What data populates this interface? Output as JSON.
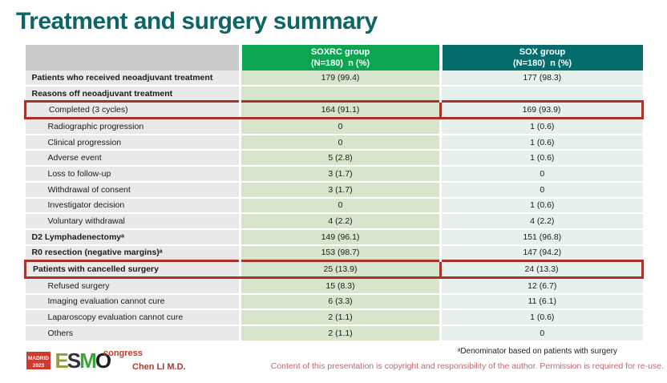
{
  "slide": {
    "title": "Treatment and surgery summary",
    "presenter": "Chen LI M.D.",
    "footnote": "ᵃDenominator based on patients with surgery",
    "copyright": "Content of this presentation is copyright and responsibility of the author. Permission is required for re-use."
  },
  "logo": {
    "city": "MADRID",
    "year": "2023",
    "letters": [
      "E",
      "S",
      "M",
      "O"
    ],
    "congress": "congress"
  },
  "colors": {
    "title": "#0d6566",
    "header_soxrc_bg": "#0ca551",
    "header_sox_bg": "#056e6c",
    "header_label_bg": "#cbcbcb",
    "label_column_bg": "#e9e9e9",
    "soxrc_column_bg": "#d6e5cc",
    "sox_column_bg": "#e6f0ec",
    "highlight_border": "#a9332b",
    "copyright_text": "#c4646e",
    "presenter_text": "#a63d2f",
    "logo_red": "#d03a2e"
  },
  "table": {
    "columns": [
      {
        "line1": "SOXRC group",
        "line2": "(N=180)  n (%)"
      },
      {
        "line1": "SOX group",
        "line2": "(N=180)  n (%)"
      }
    ],
    "rows": [
      {
        "label": "Patients who received neoadjuvant treatment",
        "soxrc": "179 (99.4)",
        "sox": "177 (98.3)",
        "bold": true,
        "indent": false,
        "highlight": false
      },
      {
        "label": "Reasons off neoadjuvant treatment",
        "soxrc": "",
        "sox": "",
        "bold": true,
        "indent": false,
        "highlight": false
      },
      {
        "label": "Completed (3 cycles)",
        "soxrc": "164 (91.1)",
        "sox": "169 (93.9)",
        "bold": false,
        "indent": true,
        "highlight": true
      },
      {
        "label": "Radiographic progression",
        "soxrc": "0",
        "sox": "1 (0.6)",
        "bold": false,
        "indent": true,
        "highlight": false
      },
      {
        "label": "Clinical progression",
        "soxrc": "0",
        "sox": "1 (0.6)",
        "bold": false,
        "indent": true,
        "highlight": false
      },
      {
        "label": "Adverse event",
        "soxrc": "5 (2.8)",
        "sox": "1 (0.6)",
        "bold": false,
        "indent": true,
        "highlight": false
      },
      {
        "label": "Loss to follow-up",
        "soxrc": "3 (1.7)",
        "sox": "0",
        "bold": false,
        "indent": true,
        "highlight": false
      },
      {
        "label": "Withdrawal of consent",
        "soxrc": "3 (1.7)",
        "sox": "0",
        "bold": false,
        "indent": true,
        "highlight": false
      },
      {
        "label": "Investigator decision",
        "soxrc": "0",
        "sox": "1 (0.6)",
        "bold": false,
        "indent": true,
        "highlight": false
      },
      {
        "label": "Voluntary withdrawal",
        "soxrc": "4 (2.2)",
        "sox": "4 (2.2)",
        "bold": false,
        "indent": true,
        "highlight": false
      },
      {
        "label": "D2 Lymphadenectomyᵃ",
        "soxrc": "149 (96.1)",
        "sox": "151 (96.8)",
        "bold": true,
        "indent": false,
        "highlight": false
      },
      {
        "label": "R0 resection (negative margins)ᵃ",
        "soxrc": "153 (98.7)",
        "sox": "147 (94.2)",
        "bold": true,
        "indent": false,
        "highlight": false
      },
      {
        "label": "Patients with cancelled surgery",
        "soxrc": "25 (13.9)",
        "sox": "24 (13.3)",
        "bold": true,
        "indent": false,
        "highlight": true
      },
      {
        "label": "Refused surgery",
        "soxrc": "15 (8.3)",
        "sox": "12 (6.7)",
        "bold": false,
        "indent": true,
        "highlight": false
      },
      {
        "label": "Imaging evaluation cannot cure",
        "soxrc": "6 (3.3)",
        "sox": "11 (6.1)",
        "bold": false,
        "indent": true,
        "highlight": false
      },
      {
        "label": "Laparoscopy evaluation cannot cure",
        "soxrc": "2 (1.1)",
        "sox": "1 (0.6)",
        "bold": false,
        "indent": true,
        "highlight": false
      },
      {
        "label": "Others",
        "soxrc": "2 (1.1)",
        "sox": "0",
        "bold": false,
        "indent": true,
        "highlight": false
      }
    ]
  }
}
